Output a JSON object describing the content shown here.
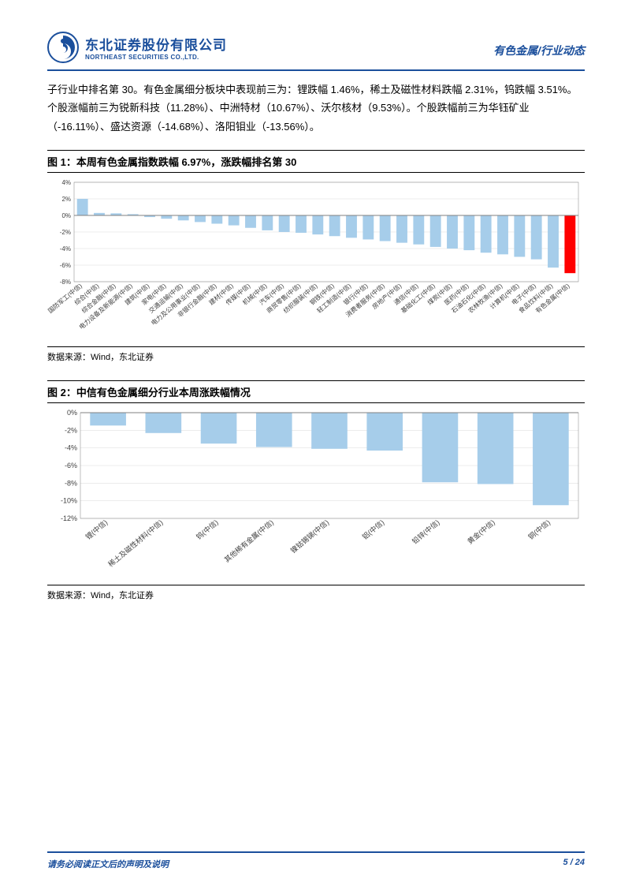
{
  "header": {
    "logo_cn": "东北证券股份有限公司",
    "logo_en": "NORTHEAST SECURITIES CO.,LTD.",
    "right_text": "有色金属/行业动态"
  },
  "body_para": "子行业中排名第 30。有色金属细分板块中表现前三为：锂跌幅 1.46%，稀土及磁性材料跌幅 2.31%，钨跌幅 3.51%。个股涨幅前三为锐新科技（11.28%）、中洲特材（10.67%）、沃尔核材（9.53%）。个股跌幅前三为华钰矿业（-16.11%）、盛达资源（-14.68%）、洛阳钼业（-13.56%）。",
  "chart1": {
    "title": "图 1：本周有色金属指数跌幅 6.97%，涨跌幅排名第 30",
    "source": "数据来源：Wind，东北证券",
    "type": "bar",
    "ylim": [
      -8,
      4
    ],
    "yticks": [
      -8,
      -6,
      -4,
      -2,
      0,
      2,
      4
    ],
    "ytick_format": "percent",
    "background_color": "#ffffff",
    "grid_color": "#d9d9d9",
    "axis_color": "#808080",
    "label_fontsize": 8,
    "categories": [
      "国防军工(中信)",
      "综合(中信)",
      "综合金融(中信)",
      "电力设备及新能源(中信)",
      "建筑(中信)",
      "家电(中信)",
      "交通运输(中信)",
      "电力及公用事业(中信)",
      "非银行金融(中信)",
      "建材(中信)",
      "传媒(中信)",
      "机械(中信)",
      "汽车(中信)",
      "商贸零售(中信)",
      "纺织服装(中信)",
      "钢铁(中信)",
      "轻工制造(中信)",
      "银行(中信)",
      "消费者服务(中信)",
      "房地产(中信)",
      "通信(中信)",
      "基础化工(中信)",
      "煤炭(中信)",
      "医药(中信)",
      "石油石化(中信)",
      "农林牧渔(中信)",
      "计算机(中信)",
      "电子(中信)",
      "食品饮料(中信)",
      "有色金属(中信)"
    ],
    "values": [
      2.0,
      0.3,
      0.25,
      0.15,
      -0.2,
      -0.4,
      -0.6,
      -0.8,
      -1.0,
      -1.2,
      -1.5,
      -1.8,
      -2.0,
      -2.1,
      -2.3,
      -2.5,
      -2.7,
      -2.9,
      -3.1,
      -3.3,
      -3.5,
      -3.8,
      -4.0,
      -4.2,
      -4.5,
      -4.7,
      -5.0,
      -5.3,
      -6.3,
      -6.97
    ],
    "bar_color": "#a6cdea",
    "highlight_color": "#ff0000",
    "highlight_index": 29
  },
  "chart2": {
    "title": "图 2：中信有色金属细分行业本周涨跌幅情况",
    "source": "数据来源：Wind，东北证券",
    "type": "bar",
    "ylim": [
      -12,
      0
    ],
    "yticks": [
      -12,
      -10,
      -8,
      -6,
      -4,
      -2,
      0
    ],
    "ytick_format": "percent",
    "background_color": "#ffffff",
    "grid_color": "#d9d9d9",
    "axis_color": "#808080",
    "label_fontsize": 9,
    "categories": [
      "锂(中信)",
      "稀土及磁性材料(中信)",
      "钨(中信)",
      "其他稀有金属(中信)",
      "镍钴锡锑(中信)",
      "铝(中信)",
      "铅锌(中信)",
      "黄金(中信)",
      "铜(中信)"
    ],
    "values": [
      -1.46,
      -2.31,
      -3.51,
      -3.9,
      -4.1,
      -4.3,
      -7.9,
      -8.1,
      -10.5
    ],
    "bar_color": "#a6cdea"
  },
  "footer": {
    "left": "请务必阅读正文后的声明及说明",
    "right": "5 / 24"
  }
}
